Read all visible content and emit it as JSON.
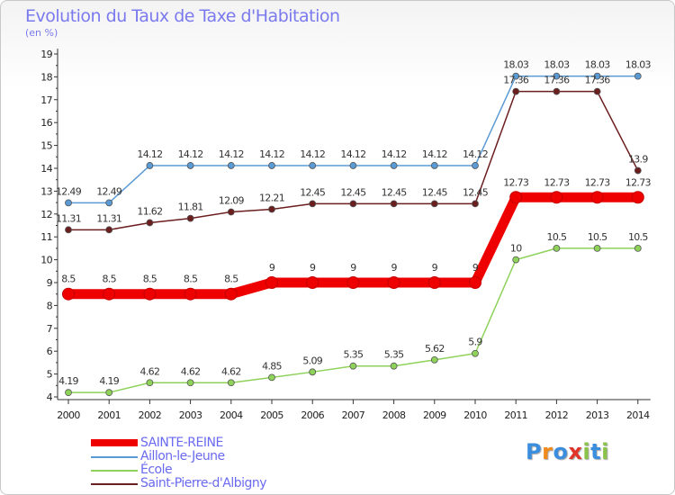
{
  "chart_data": {
    "type": "line",
    "title": "Evolution du Taux de Taxe d'Habitation",
    "subtitle": "(en %)",
    "xlabel": "",
    "ylabel": "",
    "x": [
      "2000",
      "2001",
      "2002",
      "2003",
      "2004",
      "2005",
      "2006",
      "2007",
      "2008",
      "2009",
      "2010",
      "2011",
      "2012",
      "2013",
      "2014"
    ],
    "ylim": [
      4,
      19
    ],
    "yticks": [
      4,
      5,
      6,
      7,
      8,
      9,
      10,
      11,
      12,
      13,
      14,
      15,
      16,
      17,
      18,
      19
    ],
    "grid": false,
    "legend_position": "bottom-left",
    "series": [
      {
        "name": "SAINTE-REINE",
        "color": "#ee0000",
        "values": [
          8.5,
          8.5,
          8.5,
          8.5,
          8.5,
          9,
          9,
          9,
          9,
          9,
          9,
          12.73,
          12.73,
          12.73,
          12.73
        ],
        "labels": [
          "8.5",
          "8.5",
          "8.5",
          "8.5",
          "8.5",
          "9",
          "9",
          "9",
          "9",
          "9",
          "9",
          "12.73",
          "12.73",
          "12.73",
          "12.73"
        ]
      },
      {
        "name": "Aillon-le-Jeune",
        "color": "#5b9bd5",
        "values": [
          12.49,
          12.49,
          14.12,
          14.12,
          14.12,
          14.12,
          14.12,
          14.12,
          14.12,
          14.12,
          14.12,
          18.03,
          18.03,
          18.03,
          18.03
        ],
        "labels": [
          "12.49",
          "12.49",
          "14.12",
          "14.12",
          "14.12",
          "14.12",
          "14.12",
          "14.12",
          "14.12",
          "14.12",
          "14.12",
          "18.03",
          "18.03",
          "18.03",
          "18.03"
        ]
      },
      {
        "name": "École",
        "color": "#8fd25a",
        "values": [
          4.19,
          4.19,
          4.62,
          4.62,
          4.62,
          4.85,
          5.09,
          5.35,
          5.35,
          5.62,
          5.9,
          10,
          10.5,
          10.5,
          10.5
        ],
        "labels": [
          "4.19",
          "4.19",
          "4.62",
          "4.62",
          "4.62",
          "4.85",
          "5.09",
          "5.35",
          "5.35",
          "5.62",
          "5.9",
          "10",
          "10.5",
          "10.5",
          "10.5"
        ]
      },
      {
        "name": "Saint-Pierre-d'Albigny",
        "color": "#6b1e1e",
        "values": [
          11.31,
          11.31,
          11.62,
          11.81,
          12.09,
          12.21,
          12.45,
          12.45,
          12.45,
          12.45,
          12.45,
          17.36,
          17.36,
          17.36,
          13.9
        ],
        "labels": [
          "11.31",
          "11.31",
          "11.62",
          "11.81",
          "12.09",
          "12.21",
          "12.45",
          "12.45",
          "12.45",
          "12.45",
          "12.45",
          "17.36",
          "17.36",
          "17.36",
          "13.9"
        ]
      }
    ]
  },
  "logo": {
    "text": "Proxiti",
    "letters": [
      "P",
      "r",
      "o",
      "x",
      "i",
      "t",
      "i"
    ],
    "colors": [
      "#3b8ede",
      "#f08a1c",
      "#3b8ede",
      "#e0332a",
      "#8bc34a",
      "#3b8ede",
      "#8bc34a"
    ]
  }
}
